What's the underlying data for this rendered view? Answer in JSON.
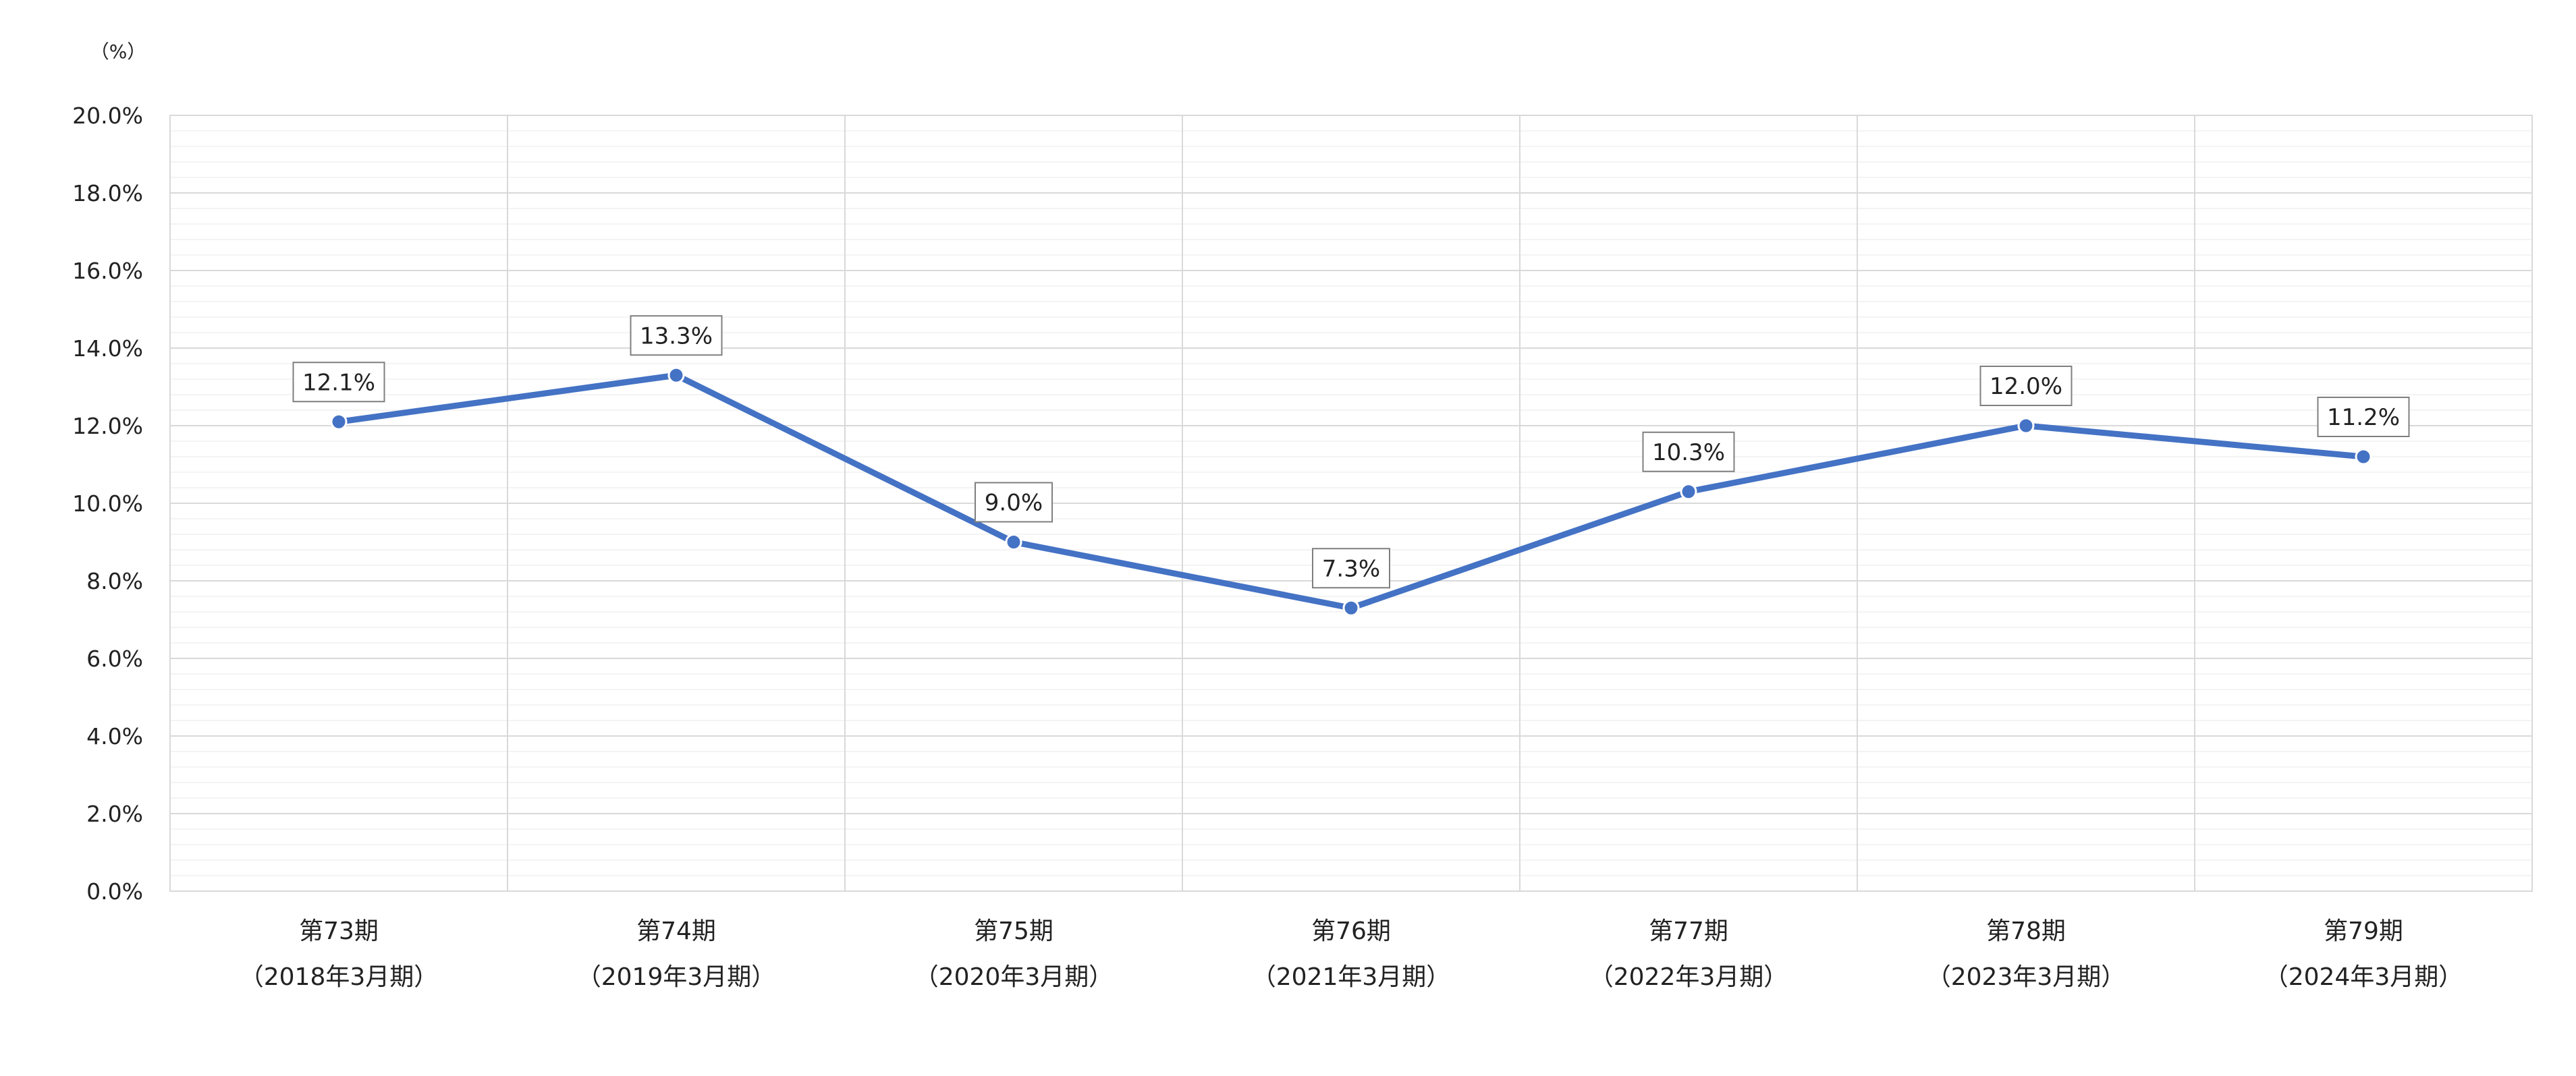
{
  "chart_data": {
    "type": "line",
    "unit_label": "（%）",
    "categories": [
      {
        "period": "第73期",
        "fiscal": "（2018年3月期）"
      },
      {
        "period": "第74期",
        "fiscal": "（2019年3月期）"
      },
      {
        "period": "第75期",
        "fiscal": "（2020年3月期）"
      },
      {
        "period": "第76期",
        "fiscal": "（2021年3月期）"
      },
      {
        "period": "第77期",
        "fiscal": "（2022年3月期）"
      },
      {
        "period": "第78期",
        "fiscal": "（2023年3月期）"
      },
      {
        "period": "第79期",
        "fiscal": "（2024年3月期）"
      }
    ],
    "series": [
      {
        "values": [
          12.1,
          13.3,
          9.0,
          7.3,
          10.3,
          12.0,
          11.2
        ],
        "labels": [
          "12.1%",
          "13.3%",
          "9.0%",
          "7.3%",
          "10.3%",
          "12.0%",
          "11.2%"
        ],
        "color": "#4472c4"
      }
    ],
    "ylim": [
      0,
      20
    ],
    "yticks": [
      {
        "value": 0,
        "label": "0.0%"
      },
      {
        "value": 2,
        "label": "2.0%"
      },
      {
        "value": 4,
        "label": "4.0%"
      },
      {
        "value": 6,
        "label": "6.0%"
      },
      {
        "value": 8,
        "label": "8.0%"
      },
      {
        "value": 10,
        "label": "10.0%"
      },
      {
        "value": 12,
        "label": "12.0%"
      },
      {
        "value": 14,
        "label": "14.0%"
      },
      {
        "value": 16,
        "label": "16.0%"
      },
      {
        "value": 18,
        "label": "18.0%"
      },
      {
        "value": 20,
        "label": "20.0%"
      }
    ],
    "minor_step": 0.4,
    "grid": true,
    "grid_color": "#d9d9d9",
    "minor_grid_color": "#f0f0f0",
    "label_box_border": "#7f7f7f"
  }
}
